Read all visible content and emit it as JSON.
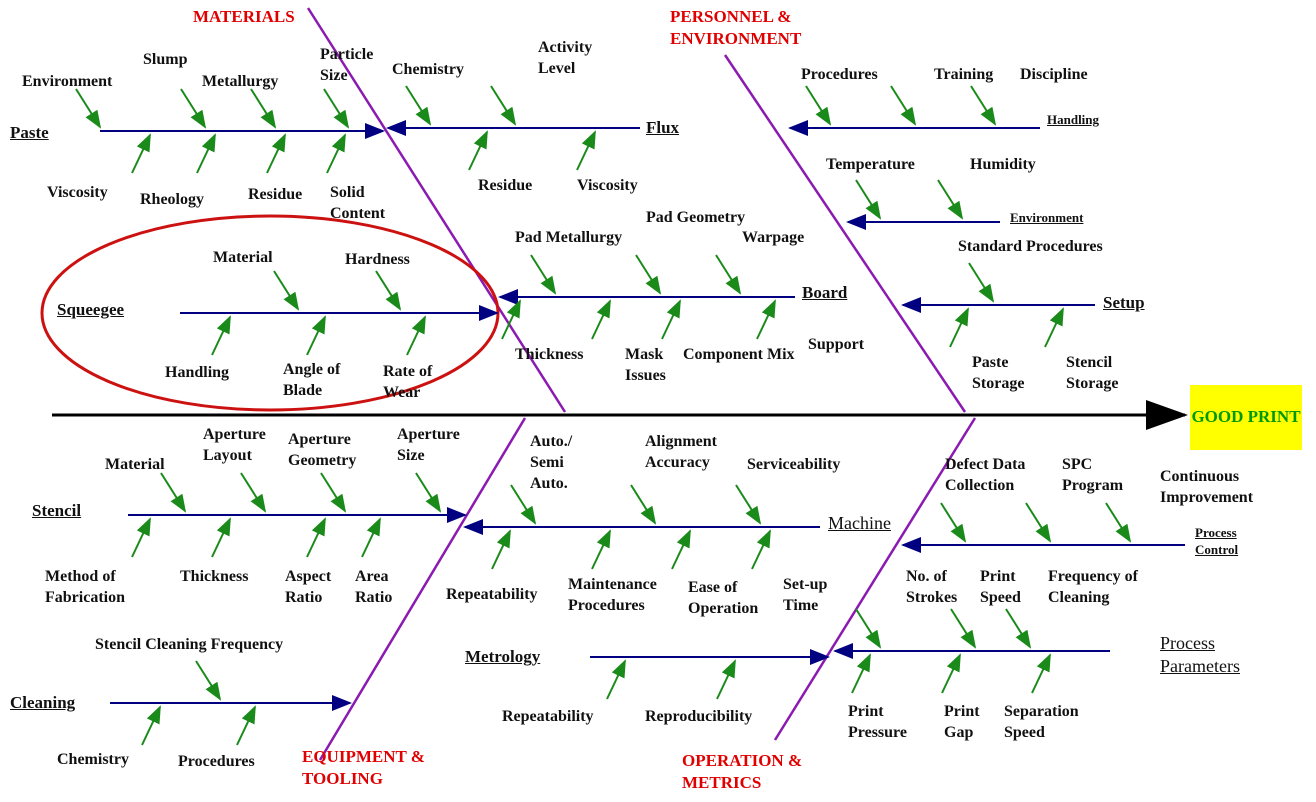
{
  "effect": "GOOD PRINT",
  "categories": [
    "MATERIALS",
    "PERSONNEL & ENVIRONMENT",
    "EQUIPMENT & TOOLING",
    "OPERATION & METRICS"
  ],
  "branches": [
    {
      "label": "Paste",
      "causes": [
        "Environment",
        "Slump",
        "Metallurgy",
        "Particle Size",
        "Viscosity",
        "Rheology",
        "Residue",
        "Solid Content"
      ]
    },
    {
      "label": "Flux",
      "causes": [
        "Chemistry",
        "Activity Level",
        "Residue",
        "Viscosity"
      ]
    },
    {
      "label": "Squeegee",
      "causes": [
        "Material",
        "Hardness",
        "Handling",
        "Angle of Blade",
        "Rate of Wear"
      ]
    },
    {
      "label": "Board",
      "causes": [
        "Pad Metallurgy",
        "Pad Geometry",
        "Warpage",
        "Thickness",
        "Mask Issues",
        "Component Mix",
        "Support"
      ]
    },
    {
      "label": "Handling",
      "causes": [
        "Procedures",
        "Training",
        "Discipline"
      ]
    },
    {
      "label": "Environment",
      "causes": [
        "Temperature",
        "Humidity"
      ]
    },
    {
      "label": "Setup",
      "causes": [
        "Standard Procedures",
        "Paste Storage",
        "Stencil Storage"
      ]
    },
    {
      "label": "Stencil",
      "causes": [
        "Material",
        "Aperture Layout",
        "Aperture Geometry",
        "Aperture Size",
        "Method of Fabrication",
        "Thickness",
        "Aspect Ratio",
        "Area Ratio"
      ]
    },
    {
      "label": "Machine",
      "causes": [
        "Auto./ Semi Auto.",
        "Alignment Accuracy",
        "Serviceability",
        "Repeatability",
        "Maintenance Procedures",
        "Ease of Operation",
        "Set-up Time"
      ]
    },
    {
      "label": "Process Control",
      "causes": [
        "Defect Data Collection",
        "SPC Program",
        "Continuous Improvement"
      ]
    },
    {
      "label": "Cleaning",
      "causes": [
        "Stencil Cleaning Frequency",
        "Chemistry",
        "Procedures"
      ]
    },
    {
      "label": "Metrology",
      "causes": [
        "Repeatability",
        "Reproducibility"
      ]
    },
    {
      "label": "Process Parameters",
      "causes": [
        "No. of Strokes",
        "Print Speed",
        "Frequency of Cleaning",
        "Print Pressure",
        "Print Gap",
        "Separation Speed"
      ]
    }
  ]
}
